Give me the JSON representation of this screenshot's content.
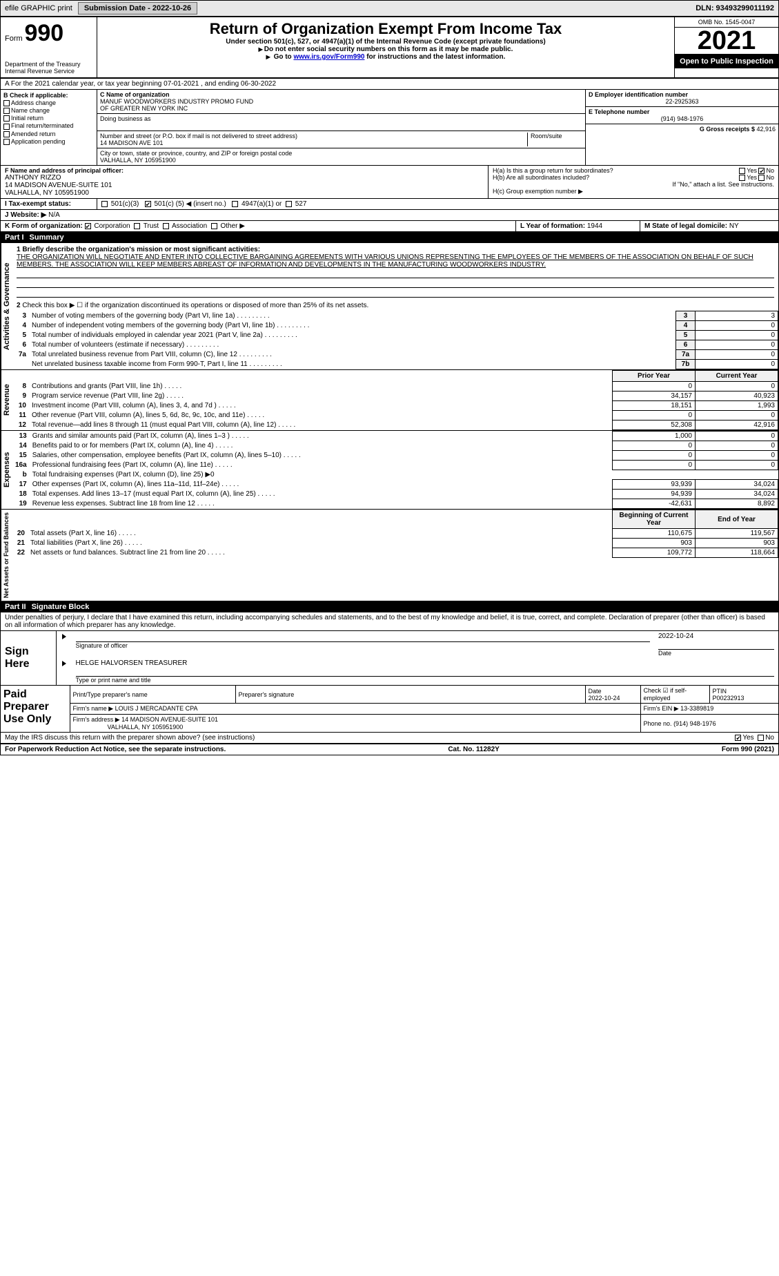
{
  "topbar": {
    "efile": "efile GRAPHIC print",
    "submission_label": "Submission Date - 2022-10-26",
    "dln_label": "DLN: 93493299011192"
  },
  "header": {
    "form_word": "Form",
    "form_num": "990",
    "title": "Return of Organization Exempt From Income Tax",
    "sub1": "Under section 501(c), 527, or 4947(a)(1) of the Internal Revenue Code (except private foundations)",
    "sub2": "Do not enter social security numbers on this form as it may be made public.",
    "sub3_pre": "Go to ",
    "sub3_link": "www.irs.gov/Form990",
    "sub3_post": " for instructions and the latest information.",
    "dept1": "Department of the Treasury",
    "dept2": "Internal Revenue Service",
    "omb": "OMB No. 1545-0047",
    "year": "2021",
    "openpub": "Open to Public Inspection"
  },
  "period": {
    "line": "A For the 2021 calendar year, or tax year beginning 07-01-2021    , and ending 06-30-2022"
  },
  "boxB": {
    "title": "B Check if applicable:",
    "items": [
      "Address change",
      "Name change",
      "Initial return",
      "Final return/terminated",
      "Amended return",
      "Application pending"
    ]
  },
  "boxC": {
    "label": "C Name of organization",
    "name1": "MANUF WOODWORKERS INDUSTRY PROMO FUND",
    "name2": "OF GREATER NEW YORK INC",
    "dba_label": "Doing business as",
    "addr_label": "Number and street (or P.O. box if mail is not delivered to street address)",
    "room_label": "Room/suite",
    "addr": "14 MADISON AVE 101",
    "city_label": "City or town, state or province, country, and ZIP or foreign postal code",
    "city": "VALHALLA, NY  105951900"
  },
  "boxD": {
    "label": "D Employer identification number",
    "value": "22-2925363"
  },
  "boxE": {
    "label": "E Telephone number",
    "value": "(914) 948-1976"
  },
  "boxG": {
    "label": "G Gross receipts $",
    "value": "42,916"
  },
  "boxF": {
    "label": "F Name and address of principal officer:",
    "name": "ANTHONY RIZZO",
    "addr1": "14 MADISON AVENUE-SUITE 101",
    "addr2": "VALHALLA, NY  105951900"
  },
  "boxH": {
    "a": "H(a) Is this a group return for subordinates?",
    "b": "H(b) Are all subordinates included?",
    "note": "If \"No,\" attach a list. See instructions.",
    "c": "H(c) Group exemption number ▶",
    "yes": "Yes",
    "no": "No"
  },
  "boxI": {
    "label": "I Tax-exempt status:",
    "opt1": "501(c)(3)",
    "opt2_pre": "501(c) (",
    "opt2_val": "5",
    "opt2_post": ") ◀ (insert no.)",
    "opt3": "4947(a)(1) or",
    "opt4": "527"
  },
  "boxJ": {
    "label": "J   Website: ▶",
    "value": "N/A"
  },
  "boxK": {
    "label": "K Form of organization:",
    "opts": [
      "Corporation",
      "Trust",
      "Association",
      "Other ▶"
    ]
  },
  "boxL": {
    "label": "L Year of formation:",
    "value": "1944"
  },
  "boxM": {
    "label": "M State of legal domicile:",
    "value": "NY"
  },
  "part1": {
    "hdr": "Part I",
    "title": "Summary",
    "q1_label": "1 Briefly describe the organization's mission or most significant activities:",
    "q1_text": "THE ORGANIZATION WILL NEGOTIATE AND ENTER INTO COLLECTIVE BARGAINING AGREEMENTS WITH VARIOUS UNIONS REPRESENTING THE EMPLOYEES OF THE MEMBERS OF THE ASSOCIATION ON BEHALF OF SUCH MEMBERS. THE ASSOCIATION WILL KEEP MEMBERS ABREAST OF INFORMATION AND DEVELOPMENTS IN THE MANUFACTURING WOODWORKERS INDUSTRY.",
    "q2": "Check this box ▶ ☐ if the organization discontinued its operations or disposed of more than 25% of its net assets.",
    "gov_rows": [
      {
        "n": "3",
        "t": "Number of voting members of the governing body (Part VI, line 1a)",
        "box": "3",
        "v": "3"
      },
      {
        "n": "4",
        "t": "Number of independent voting members of the governing body (Part VI, line 1b)",
        "box": "4",
        "v": "0"
      },
      {
        "n": "5",
        "t": "Total number of individuals employed in calendar year 2021 (Part V, line 2a)",
        "box": "5",
        "v": "0"
      },
      {
        "n": "6",
        "t": "Total number of volunteers (estimate if necessary)",
        "box": "6",
        "v": "0"
      },
      {
        "n": "7a",
        "t": "Total unrelated business revenue from Part VIII, column (C), line 12",
        "box": "7a",
        "v": "0"
      },
      {
        "n": "",
        "t": "Net unrelated business taxable income from Form 990-T, Part I, line 11",
        "box": "7b",
        "v": "0"
      }
    ],
    "col_prior": "Prior Year",
    "col_current": "Current Year",
    "rev_rows": [
      {
        "n": "8",
        "t": "Contributions and grants (Part VIII, line 1h)",
        "p": "0",
        "c": "0"
      },
      {
        "n": "9",
        "t": "Program service revenue (Part VIII, line 2g)",
        "p": "34,157",
        "c": "40,923"
      },
      {
        "n": "10",
        "t": "Investment income (Part VIII, column (A), lines 3, 4, and 7d )",
        "p": "18,151",
        "c": "1,993"
      },
      {
        "n": "11",
        "t": "Other revenue (Part VIII, column (A), lines 5, 6d, 8c, 9c, 10c, and 11e)",
        "p": "0",
        "c": "0"
      },
      {
        "n": "12",
        "t": "Total revenue—add lines 8 through 11 (must equal Part VIII, column (A), line 12)",
        "p": "52,308",
        "c": "42,916"
      }
    ],
    "exp_rows": [
      {
        "n": "13",
        "t": "Grants and similar amounts paid (Part IX, column (A), lines 1–3 )",
        "p": "1,000",
        "c": "0"
      },
      {
        "n": "14",
        "t": "Benefits paid to or for members (Part IX, column (A), line 4)",
        "p": "0",
        "c": "0"
      },
      {
        "n": "15",
        "t": "Salaries, other compensation, employee benefits (Part IX, column (A), lines 5–10)",
        "p": "0",
        "c": "0"
      },
      {
        "n": "16a",
        "t": "Professional fundraising fees (Part IX, column (A), line 11e)",
        "p": "0",
        "c": "0"
      },
      {
        "n": "b",
        "t": "Total fundraising expenses (Part IX, column (D), line 25) ▶0",
        "p": "",
        "c": ""
      },
      {
        "n": "17",
        "t": "Other expenses (Part IX, column (A), lines 11a–11d, 11f–24e)",
        "p": "93,939",
        "c": "34,024"
      },
      {
        "n": "18",
        "t": "Total expenses. Add lines 13–17 (must equal Part IX, column (A), line 25)",
        "p": "94,939",
        "c": "34,024"
      },
      {
        "n": "19",
        "t": "Revenue less expenses. Subtract line 18 from line 12",
        "p": "-42,631",
        "c": "8,892"
      }
    ],
    "col_boy": "Beginning of Current Year",
    "col_eoy": "End of Year",
    "na_rows": [
      {
        "n": "20",
        "t": "Total assets (Part X, line 16)",
        "p": "110,675",
        "c": "119,567"
      },
      {
        "n": "21",
        "t": "Total liabilities (Part X, line 26)",
        "p": "903",
        "c": "903"
      },
      {
        "n": "22",
        "t": "Net assets or fund balances. Subtract line 21 from line 20",
        "p": "109,772",
        "c": "118,664"
      }
    ],
    "side_gov": "Activities & Governance",
    "side_rev": "Revenue",
    "side_exp": "Expenses",
    "side_na": "Net Assets or Fund Balances"
  },
  "part2": {
    "hdr": "Part II",
    "title": "Signature Block",
    "decl": "Under penalties of perjury, I declare that I have examined this return, including accompanying schedules and statements, and to the best of my knowledge and belief, it is true, correct, and complete. Declaration of preparer (other than officer) is based on all information of which preparer has any knowledge.",
    "sign_here": "Sign Here",
    "sig_officer": "Signature of officer",
    "sig_date": "Date",
    "sig_date_val": "2022-10-24",
    "officer_name": "HELGE HALVORSEN  TREASURER",
    "type_name": "Type or print name and title",
    "paid": "Paid Preparer Use Only",
    "prep_name_lbl": "Print/Type preparer's name",
    "prep_sig_lbl": "Preparer's signature",
    "date_lbl": "Date",
    "date_val": "2022-10-24",
    "self_emp": "Check ☑ if self-employed",
    "ptin_lbl": "PTIN",
    "ptin": "P00232913",
    "firm_name_lbl": "Firm's name   ▶",
    "firm_name": "LOUIS J MERCADANTE CPA",
    "firm_ein_lbl": "Firm's EIN ▶",
    "firm_ein": "13-3389819",
    "firm_addr_lbl": "Firm's address ▶",
    "firm_addr1": "14 MADISON AVENUE-SUITE 101",
    "firm_addr2": "VALHALLA, NY  105951900",
    "phone_lbl": "Phone no.",
    "phone": "(914) 948-1976",
    "may_irs": "May the IRS discuss this return with the preparer shown above? (see instructions)",
    "yes": "Yes",
    "no": "No"
  },
  "footer": {
    "pra": "For Paperwork Reduction Act Notice, see the separate instructions.",
    "cat": "Cat. No. 11282Y",
    "form": "Form 990 (2021)"
  }
}
